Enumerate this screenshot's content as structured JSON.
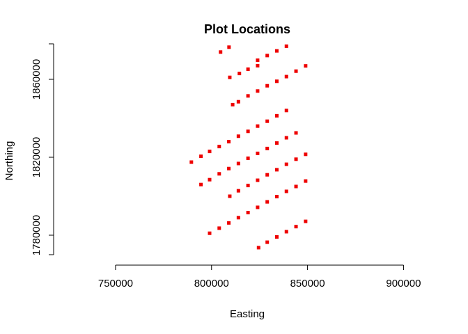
{
  "chart_data": {
    "type": "scatter",
    "title": "Plot Locations",
    "xlabel": "Easting",
    "ylabel": "Northing",
    "xlim": [
      725000,
      910000
    ],
    "ylim": [
      1770000,
      1875000
    ],
    "x_ticks": [
      750000,
      800000,
      850000,
      900000
    ],
    "x_tick_labels": [
      "750000",
      "800000",
      "850000",
      "900000"
    ],
    "y_ticks": [
      1780000,
      1820000,
      1860000
    ],
    "y_tick_labels": [
      "1780000",
      "1820000",
      "1860000"
    ],
    "grid": false,
    "legend": "none",
    "marker": "square",
    "marker_color": "#ee0000",
    "points": [
      {
        "x": 804700,
        "y": 1874000
      },
      {
        "x": 809100,
        "y": 1876500
      },
      {
        "x": 824000,
        "y": 1869800
      },
      {
        "x": 829000,
        "y": 1872200
      },
      {
        "x": 834000,
        "y": 1874600
      },
      {
        "x": 839000,
        "y": 1877000
      },
      {
        "x": 809500,
        "y": 1861000
      },
      {
        "x": 814500,
        "y": 1863000
      },
      {
        "x": 819000,
        "y": 1865200
      },
      {
        "x": 824000,
        "y": 1867000
      },
      {
        "x": 834000,
        "y": 1859000
      },
      {
        "x": 839000,
        "y": 1861400
      },
      {
        "x": 844000,
        "y": 1864200
      },
      {
        "x": 849000,
        "y": 1866900
      },
      {
        "x": 829000,
        "y": 1856700
      },
      {
        "x": 824000,
        "y": 1854000
      },
      {
        "x": 819000,
        "y": 1851500
      },
      {
        "x": 814000,
        "y": 1848500
      },
      {
        "x": 811000,
        "y": 1847000
      },
      {
        "x": 839000,
        "y": 1844000
      },
      {
        "x": 834000,
        "y": 1841300
      },
      {
        "x": 829000,
        "y": 1838500
      },
      {
        "x": 824000,
        "y": 1836000
      },
      {
        "x": 819000,
        "y": 1833300
      },
      {
        "x": 814000,
        "y": 1830800
      },
      {
        "x": 809000,
        "y": 1828000
      },
      {
        "x": 804000,
        "y": 1825500
      },
      {
        "x": 799000,
        "y": 1823000
      },
      {
        "x": 794500,
        "y": 1820500
      },
      {
        "x": 789500,
        "y": 1817500
      },
      {
        "x": 844000,
        "y": 1832500
      },
      {
        "x": 839000,
        "y": 1830000
      },
      {
        "x": 834000,
        "y": 1827300
      },
      {
        "x": 829000,
        "y": 1824500
      },
      {
        "x": 824000,
        "y": 1822000
      },
      {
        "x": 819000,
        "y": 1819500
      },
      {
        "x": 814000,
        "y": 1816800
      },
      {
        "x": 809000,
        "y": 1814200
      },
      {
        "x": 804000,
        "y": 1811500
      },
      {
        "x": 799000,
        "y": 1808500
      },
      {
        "x": 794500,
        "y": 1806000
      },
      {
        "x": 849000,
        "y": 1821500
      },
      {
        "x": 844000,
        "y": 1819000
      },
      {
        "x": 839000,
        "y": 1816400
      },
      {
        "x": 834000,
        "y": 1813600
      },
      {
        "x": 829000,
        "y": 1811000
      },
      {
        "x": 824000,
        "y": 1808200
      },
      {
        "x": 819000,
        "y": 1805500
      },
      {
        "x": 814000,
        "y": 1802800
      },
      {
        "x": 809500,
        "y": 1800000
      },
      {
        "x": 849000,
        "y": 1807800
      },
      {
        "x": 844000,
        "y": 1805000
      },
      {
        "x": 839000,
        "y": 1802500
      },
      {
        "x": 834000,
        "y": 1799800
      },
      {
        "x": 829000,
        "y": 1797100
      },
      {
        "x": 824000,
        "y": 1794300
      },
      {
        "x": 819000,
        "y": 1791600
      },
      {
        "x": 814000,
        "y": 1789000
      },
      {
        "x": 809000,
        "y": 1786300
      },
      {
        "x": 804000,
        "y": 1783600
      },
      {
        "x": 799000,
        "y": 1781000
      },
      {
        "x": 849000,
        "y": 1787100
      },
      {
        "x": 844000,
        "y": 1784400
      },
      {
        "x": 839000,
        "y": 1781800
      },
      {
        "x": 834000,
        "y": 1779100
      },
      {
        "x": 829000,
        "y": 1776400
      },
      {
        "x": 824500,
        "y": 1773600
      }
    ]
  }
}
